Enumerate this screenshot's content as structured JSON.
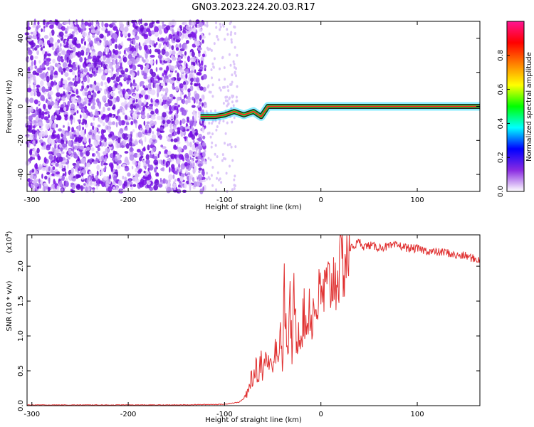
{
  "title": "GN03.2023.224.20.03.R17",
  "colors": {
    "psd_scatter": "#7a10e8",
    "signal_band_outline": "#222222",
    "signal_band_core": "#ff2020",
    "snr_line": "#e03030",
    "axis": "#000000"
  },
  "chart_data": [
    {
      "type": "heatmap",
      "xlabel": "Height of straight line (km)",
      "ylabel": "Frequency (Hz)",
      "xlim": [
        -305,
        165
      ],
      "ylim": [
        -50,
        50
      ],
      "xticks": [
        -300,
        -200,
        -100,
        0,
        100
      ],
      "xtick_labels": [
        "-300",
        "-200",
        "-100",
        "0",
        "100"
      ],
      "yticks": [
        -40,
        -20,
        0,
        20,
        40
      ],
      "ytick_labels": [
        "-40",
        "-20",
        "0",
        "20",
        "40"
      ],
      "noise_region_x": [
        -305,
        -120
      ],
      "signal_track": {
        "x": [
          -125,
          -110,
          -100,
          -90,
          -80,
          -70,
          -62,
          -55,
          -45,
          -35,
          -25,
          -15,
          0,
          50,
          100,
          165
        ],
        "y": [
          -6,
          -6,
          -5,
          -3,
          -5,
          -3,
          -6,
          0,
          0,
          0,
          0,
          0,
          0,
          0,
          0,
          0
        ]
      },
      "colorbar": {
        "label": "Normalized spectral amplitude",
        "range": [
          0,
          1
        ],
        "ticks": [
          0.0,
          0.2,
          0.4,
          0.6,
          0.8
        ],
        "tick_labels": [
          "0.0",
          "0.2",
          "0.4",
          "0.6",
          "0.8"
        ],
        "colors": [
          "#ffffff",
          "#8a2be2",
          "#0000ff",
          "#00ffff",
          "#00ff00",
          "#ffff00",
          "#ff8000",
          "#ff0000",
          "#ff1493"
        ]
      }
    },
    {
      "type": "line",
      "xlabel": "Height of straight line (km)",
      "ylabel": "SNR (10 * v/v)",
      "y_scale_label": "(x10",
      "y_scale_exp": "4",
      "y_scale_close": ")",
      "xlim": [
        -305,
        165
      ],
      "ylim": [
        0,
        2.45
      ],
      "xticks": [
        -300,
        -200,
        -100,
        0,
        100
      ],
      "xtick_labels": [
        "-300",
        "-200",
        "-100",
        "0",
        "100"
      ],
      "yticks": [
        0.0,
        0.5,
        1.0,
        1.5,
        2.0
      ],
      "ytick_labels": [
        "0.0",
        "0.5",
        "1.0",
        "1.5",
        "2.0"
      ],
      "series": [
        {
          "x": [
            -305,
            -250,
            -200,
            -150,
            -100,
            -85,
            -80,
            -75,
            -72,
            -70,
            -68,
            -65,
            -62,
            -60,
            -58,
            -55,
            -52,
            -50,
            -48,
            -45,
            -42,
            -40,
            -38,
            -35,
            -32,
            -30,
            -28,
            -25,
            -22,
            -20,
            -18,
            -15,
            -12,
            -10,
            -8,
            -5,
            -2,
            0,
            5,
            10,
            15,
            20,
            25,
            30,
            35,
            40,
            45,
            50,
            60,
            70,
            80,
            90,
            100,
            110,
            120,
            130,
            140,
            150,
            160,
            165
          ],
          "y": [
            0.01,
            0.01,
            0.01,
            0.01,
            0.02,
            0.05,
            0.1,
            0.2,
            0.45,
            0.3,
            0.6,
            0.35,
            0.75,
            0.4,
            0.8,
            0.5,
            0.9,
            0.45,
            1.0,
            0.6,
            1.2,
            0.55,
            1.65,
            0.7,
            1.4,
            0.8,
            1.5,
            0.9,
            1.2,
            1.0,
            1.35,
            1.1,
            1.5,
            1.2,
            1.35,
            1.4,
            1.55,
            1.55,
            1.65,
            1.75,
            1.85,
            1.95,
            2.1,
            2.25,
            2.3,
            2.35,
            2.28,
            2.3,
            2.27,
            2.28,
            2.3,
            2.26,
            2.25,
            2.22,
            2.2,
            2.2,
            2.15,
            2.15,
            2.1,
            2.1
          ]
        }
      ]
    }
  ]
}
